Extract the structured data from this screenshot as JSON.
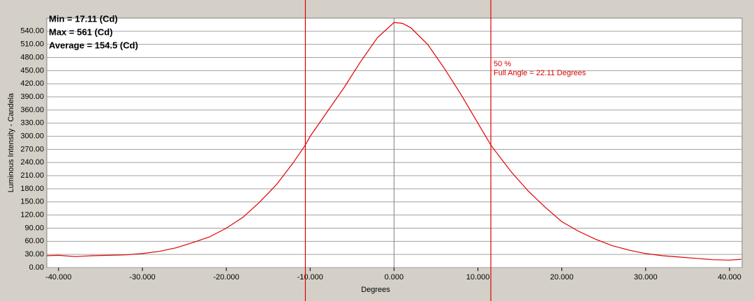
{
  "chart_data": {
    "type": "line",
    "x_label": "Degrees",
    "y_label": "Luminous Intensity - Candela",
    "stats": [
      "Min = 17.11 (Cd)",
      "Max = 561 (Cd)",
      "Average = 154.5 (Cd)"
    ],
    "annotations": [
      "50 %",
      "Full Angle = 22.11 Degrees"
    ],
    "markers": [
      -10.57,
      11.54
    ],
    "marker_color": "#e00000",
    "color": "#e00000",
    "grid": true,
    "x": [
      -41.4,
      -40,
      -38,
      -36,
      -34,
      -32,
      -30,
      -28,
      -26,
      -24,
      -22,
      -20,
      -18,
      -16,
      -14,
      -12,
      -10.57,
      -10,
      -8,
      -6,
      -4,
      -2,
      0,
      1,
      2,
      4,
      6,
      8,
      10,
      11.54,
      12,
      14,
      16,
      18,
      20,
      22,
      24,
      26,
      28,
      30,
      32,
      34,
      36,
      38,
      40,
      41.4
    ],
    "values": [
      27,
      28,
      25,
      27,
      28,
      29,
      32,
      37,
      45,
      57,
      70,
      90,
      115,
      150,
      190,
      240,
      280,
      300,
      355,
      410,
      470,
      525,
      560,
      558,
      548,
      510,
      455,
      395,
      330,
      280,
      268,
      218,
      175,
      138,
      105,
      83,
      65,
      50,
      40,
      32,
      27,
      24,
      21,
      18,
      17,
      19
    ],
    "xlim": [
      -41.4,
      41.5
    ],
    "ylim": [
      0,
      570
    ],
    "xticks": [
      {
        "value": -40,
        "label": "-40.000"
      },
      {
        "value": -30,
        "label": "-30.000"
      },
      {
        "value": -20,
        "label": "-20.000"
      },
      {
        "value": -10,
        "label": "-10.000"
      },
      {
        "value": 0,
        "label": "0.000"
      },
      {
        "value": 10,
        "label": "10.000"
      },
      {
        "value": 20,
        "label": "20.000"
      },
      {
        "value": 30,
        "label": "30.000"
      },
      {
        "value": 40,
        "label": "40.000"
      }
    ],
    "yticks": [
      {
        "value": 0,
        "label": "0.00"
      },
      {
        "value": 30,
        "label": "30.00"
      },
      {
        "value": 60,
        "label": "60.00"
      },
      {
        "value": 90,
        "label": "90.00"
      },
      {
        "value": 120,
        "label": "120.00"
      },
      {
        "value": 150,
        "label": "150.00"
      },
      {
        "value": 180,
        "label": "180.00"
      },
      {
        "value": 210,
        "label": "210.00"
      },
      {
        "value": 240,
        "label": "240.00"
      },
      {
        "value": 270,
        "label": "270.00"
      },
      {
        "value": 300,
        "label": "300.00"
      },
      {
        "value": 330,
        "label": "330.00"
      },
      {
        "value": 360,
        "label": "360.00"
      },
      {
        "value": 390,
        "label": "390.00"
      },
      {
        "value": 420,
        "label": "420.00"
      },
      {
        "value": 450,
        "label": "450.00"
      },
      {
        "value": 480,
        "label": "480.00"
      },
      {
        "value": 510,
        "label": "510.00"
      },
      {
        "value": 540,
        "label": "540.00"
      }
    ]
  }
}
